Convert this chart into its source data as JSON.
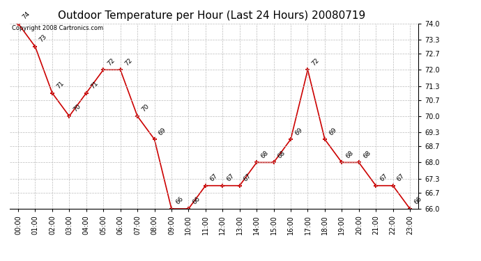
{
  "title": "Outdoor Temperature per Hour (Last 24 Hours) 20080719",
  "copyright_text": "Copyright 2008 Cartronics.com",
  "hours": [
    "00:00",
    "01:00",
    "02:00",
    "03:00",
    "04:00",
    "05:00",
    "06:00",
    "07:00",
    "08:00",
    "09:00",
    "10:00",
    "11:00",
    "12:00",
    "13:00",
    "14:00",
    "15:00",
    "16:00",
    "17:00",
    "18:00",
    "19:00",
    "20:00",
    "21:00",
    "22:00",
    "23:00"
  ],
  "temps": [
    74,
    73,
    71,
    70,
    71,
    72,
    72,
    70,
    69,
    66,
    66,
    67,
    67,
    67,
    68,
    68,
    69,
    72,
    69,
    68,
    68,
    67,
    67,
    66
  ],
  "ylim_min": 66.0,
  "ylim_max": 74.0,
  "yticks": [
    66.0,
    66.7,
    67.3,
    68.0,
    68.7,
    69.3,
    70.0,
    70.7,
    71.3,
    72.0,
    72.7,
    73.3,
    74.0
  ],
  "line_color": "#cc0000",
  "marker_color": "#cc0000",
  "bg_color": "#ffffff",
  "plot_bg_color": "#ffffff",
  "grid_color": "#bbbbbb",
  "title_fontsize": 11,
  "tick_fontsize": 7,
  "annotation_fontsize": 6.5,
  "copyright_fontsize": 6
}
